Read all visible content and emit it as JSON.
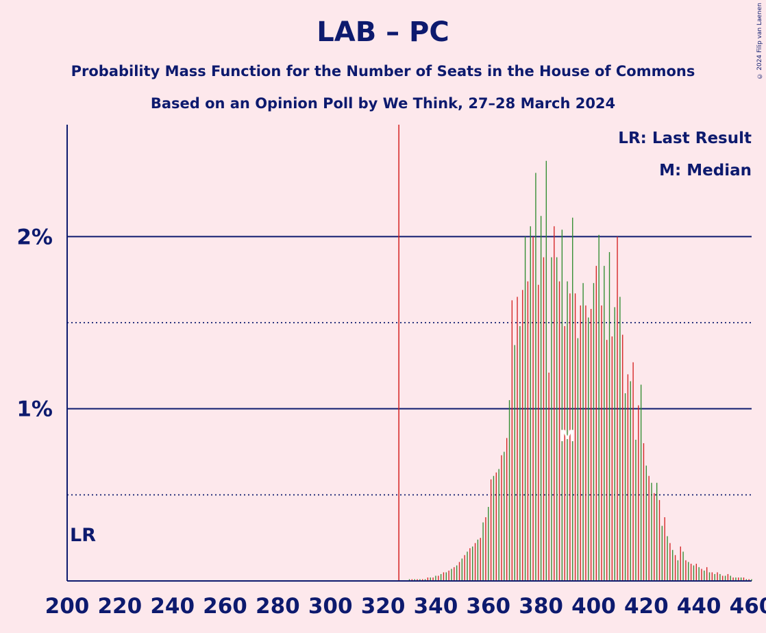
{
  "chart_data": {
    "type": "bar",
    "title": "LAB – PC",
    "subtitle": "Probability Mass Function for the Number of Seats in the House of Commons",
    "subtitle2": "Based on an Opinion Poll by We Think, 27–28 March 2024",
    "copyright": "© 2024 Filip van Laenen",
    "xlabel": "",
    "ylabel": "",
    "xlim": [
      200,
      460
    ],
    "ylim": [
      0,
      2.65
    ],
    "x_ticks": [
      "200",
      "220",
      "240",
      "260",
      "280",
      "300",
      "320",
      "340",
      "360",
      "380",
      "400",
      "420",
      "440",
      "460"
    ],
    "y_ticks": [
      {
        "value": 1,
        "label": "1%"
      },
      {
        "value": 2,
        "label": "2%"
      }
    ],
    "gridlines_solid": [
      1,
      2
    ],
    "gridlines_dotted": [
      0.5,
      1.5
    ],
    "last_result": {
      "x": 326,
      "label": "LR"
    },
    "median": {
      "x": 390,
      "label": "M"
    },
    "legend": [
      "LR: Last Result",
      "M: Median"
    ],
    "series_colors": {
      "odd": "#D42020",
      "even": "#2E8B2E",
      "lr_line": "#D42020",
      "axis": "#0D1A6E"
    },
    "x_start": 330,
    "values": [
      0.01,
      0.01,
      0.01,
      0.01,
      0.01,
      0.01,
      0.01,
      0.02,
      0.02,
      0.02,
      0.03,
      0.03,
      0.04,
      0.05,
      0.05,
      0.06,
      0.07,
      0.08,
      0.09,
      0.11,
      0.13,
      0.15,
      0.17,
      0.19,
      0.2,
      0.22,
      0.24,
      0.25,
      0.34,
      0.37,
      0.43,
      0.59,
      0.61,
      0.63,
      0.65,
      0.73,
      0.75,
      0.83,
      1.05,
      1.63,
      1.37,
      1.65,
      1.48,
      1.69,
      2.0,
      1.74,
      2.06,
      2.0,
      2.37,
      1.72,
      2.12,
      1.88,
      2.44,
      1.21,
      1.88,
      2.06,
      1.88,
      1.74,
      2.04,
      1.48,
      1.74,
      1.67,
      2.11,
      1.67,
      1.41,
      1.6,
      1.73,
      1.6,
      1.53,
      1.58,
      1.73,
      1.83,
      2.01,
      1.6,
      1.83,
      1.4,
      1.91,
      1.42,
      1.59,
      2.0,
      1.65,
      1.43,
      1.09,
      1.2,
      1.16,
      1.27,
      0.82,
      1.02,
      1.14,
      0.8,
      0.67,
      0.61,
      0.57,
      0.51,
      0.57,
      0.47,
      0.32,
      0.37,
      0.26,
      0.22,
      0.18,
      0.15,
      0.12,
      0.2,
      0.17,
      0.12,
      0.11,
      0.1,
      0.09,
      0.1,
      0.08,
      0.07,
      0.06,
      0.08,
      0.05,
      0.05,
      0.04,
      0.05,
      0.04,
      0.03,
      0.03,
      0.04,
      0.03,
      0.02,
      0.02,
      0.02,
      0.02,
      0.02,
      0.01,
      0.01,
      0.01
    ]
  }
}
